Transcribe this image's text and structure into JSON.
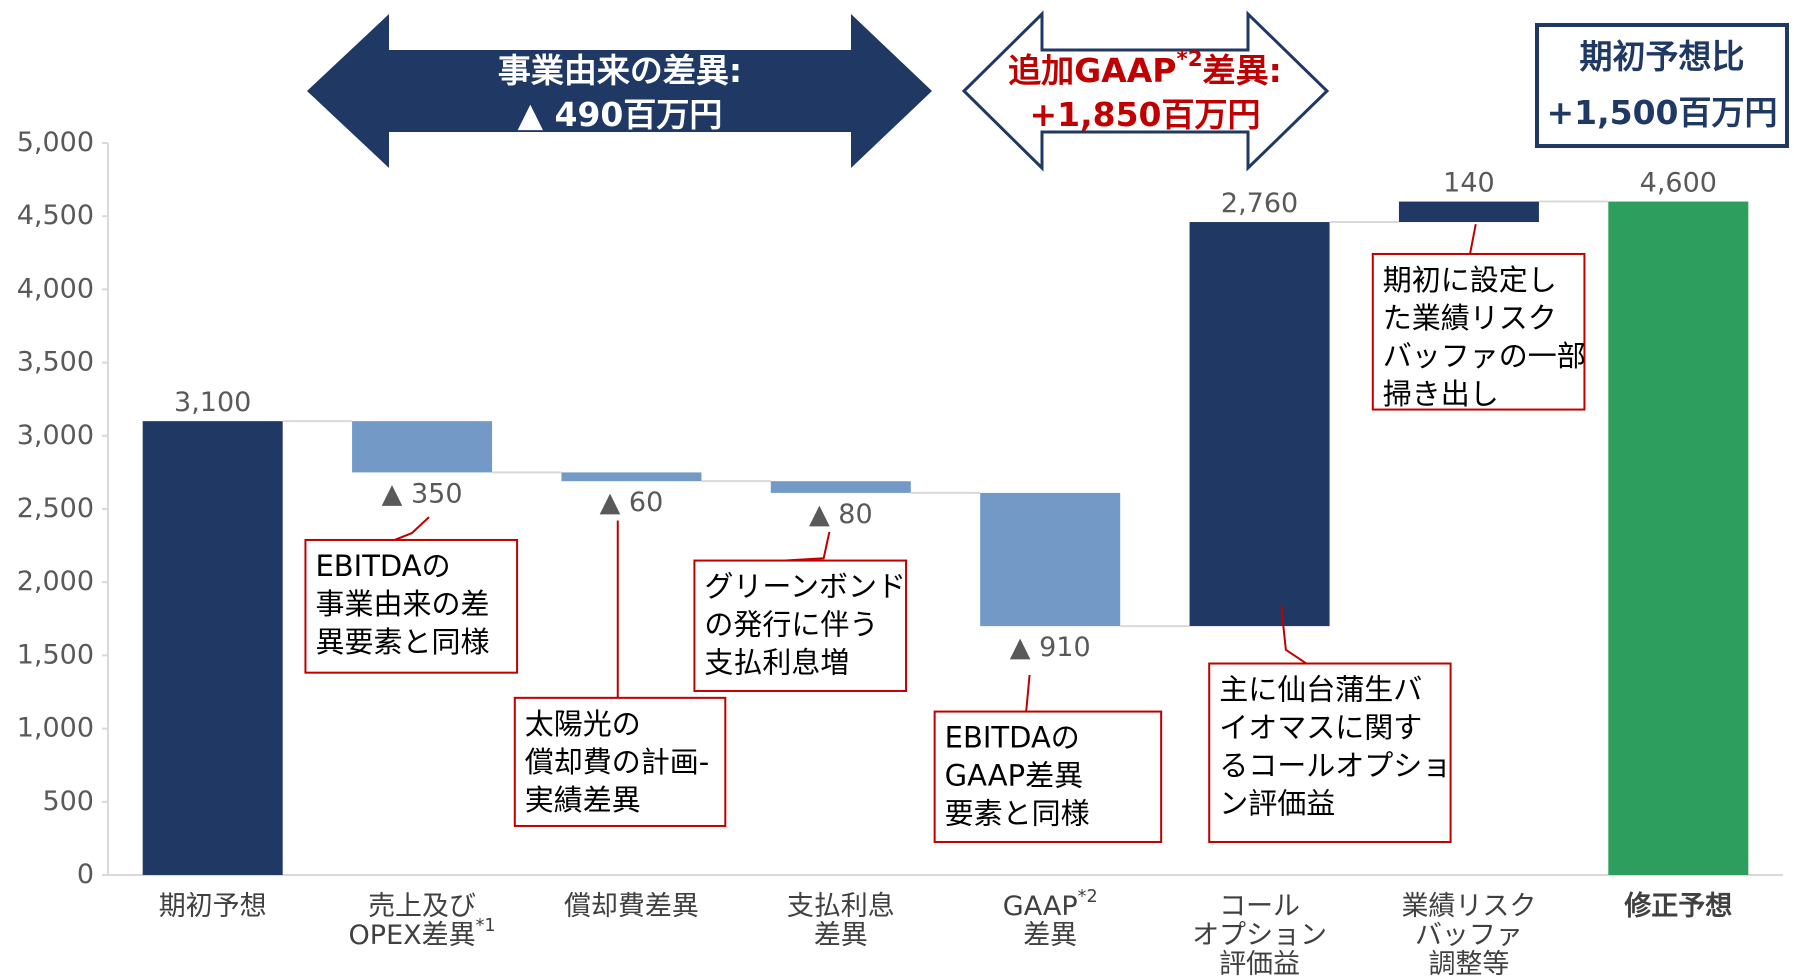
{
  "chart_data": {
    "type": "waterfall",
    "categories": [
      [
        "期初予想"
      ],
      [
        "売上及び",
        "OPEX差異*1"
      ],
      [
        "償却費差異"
      ],
      [
        "支払利息",
        "差異"
      ],
      [
        "GAAP*2",
        "差異"
      ],
      [
        "コール",
        "オプション",
        "評価益"
      ],
      [
        "業績リスク",
        "バッファ",
        "調整等"
      ],
      [
        "修正予想"
      ]
    ],
    "values": [
      3100,
      -350,
      -60,
      -80,
      -910,
      2760,
      140,
      4600
    ],
    "value_labels": [
      "3,100",
      "▲ 350",
      "▲ 60",
      "▲ 80",
      "▲ 910",
      "2,760",
      "140",
      "4,600"
    ],
    "total": [
      true,
      false,
      false,
      false,
      false,
      false,
      false,
      true
    ],
    "colors": [
      "#1f3864",
      "#7399c6",
      "#7399c6",
      "#7399c6",
      "#7399c6",
      "#1f3864",
      "#1f3864",
      "#2e9e5e"
    ],
    "ylim": [
      0,
      5000
    ],
    "yticks": [
      0,
      500,
      {
        "value": 1000,
        "label": "1,000"
      },
      {
        "value": 1500,
        "label": "1,500"
      },
      {
        "value": 2000,
        "label": "2,000"
      },
      {
        "value": 2500,
        "label": "2,500"
      },
      {
        "value": 3000,
        "label": "3,000"
      },
      {
        "value": 3500,
        "label": "3,500"
      },
      {
        "value": 4000,
        "label": "4,000"
      },
      {
        "value": 4500,
        "label": "4,500"
      },
      {
        "value": 5000,
        "label": "5,000"
      }
    ],
    "annotations": [
      {
        "lines": [
          "EBITDAの",
          "事業由来の差",
          "異要素と同様"
        ]
      },
      {
        "lines": [
          "太陽光の",
          "償却費の計画-",
          "実績差異"
        ]
      },
      {
        "lines": [
          "グリーンボンド",
          "の発行に伴う",
          "支払利息増"
        ]
      },
      {
        "lines": [
          "EBITDAの",
          "GAAP差異",
          "要素と同様"
        ]
      },
      {
        "lines": [
          "主に仙台蒲生バ",
          "イオマスに関す",
          "るコールオプショ",
          "ン評価益"
        ]
      },
      {
        "lines": [
          "期初に設定し",
          "た業績リスク",
          "バッファの一部",
          "掃き出し"
        ]
      }
    ],
    "callouts": [
      {
        "lines": [
          "事業由来の差異:",
          "▲ 490百万円"
        ]
      },
      {
        "lines": [
          "追加GAAP*2差異:",
          "+1,850百万円"
        ]
      },
      {
        "lines": [
          "期初予想比",
          "+1,500百万円"
        ]
      }
    ]
  }
}
